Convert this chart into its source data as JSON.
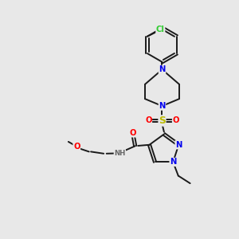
{
  "background_color": "#e8e8e8",
  "bond_color": "#1a1a1a",
  "atom_colors": {
    "N": "#0000ee",
    "O": "#ff0000",
    "S": "#bbbb00",
    "Cl": "#33cc33",
    "C": "#1a1a1a",
    "H": "#666666"
  },
  "lw": 1.4,
  "fs": 7.2,
  "fs_small": 6.2
}
